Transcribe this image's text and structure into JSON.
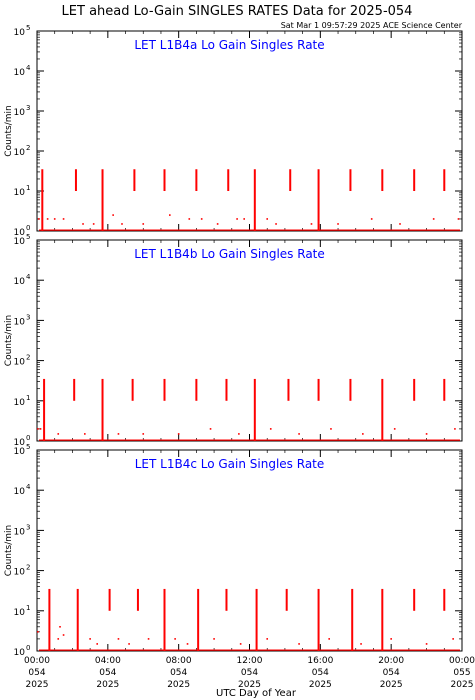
{
  "header": {
    "title": "LET ahead Lo-Gain SINGLES RATES Data for 2025-054",
    "timestamp": "Sat Mar  1 09:57:29 2025 ACE Science Center"
  },
  "colors": {
    "data": "#ff0000",
    "panel_title": "#0000ff",
    "axis": "#000000"
  },
  "chart_data": [
    {
      "type": "scatter",
      "title": "LET L1B4a Lo Gain Singles Rate",
      "ylabel": "Counts/min",
      "xlabel": "UTC Day of Year",
      "yscale": "log",
      "ylim": [
        1,
        100000
      ],
      "xlim": [
        0,
        24
      ],
      "yticks": [
        "10^0",
        "10^1",
        "10^2",
        "10^3",
        "10^4",
        "10^5"
      ],
      "spikes": [
        {
          "x": 0.3,
          "ymin": 1,
          "ymax": 35
        },
        {
          "x": 2.2,
          "ymin": 10,
          "ymax": 35
        },
        {
          "x": 3.7,
          "ymin": 1,
          "ymax": 35
        },
        {
          "x": 5.5,
          "ymin": 10,
          "ymax": 35
        },
        {
          "x": 7.2,
          "ymin": 10,
          "ymax": 35
        },
        {
          "x": 9.0,
          "ymin": 10,
          "ymax": 35
        },
        {
          "x": 10.8,
          "ymin": 10,
          "ymax": 35
        },
        {
          "x": 12.3,
          "ymin": 1,
          "ymax": 35
        },
        {
          "x": 14.3,
          "ymin": 10,
          "ymax": 35
        },
        {
          "x": 15.9,
          "ymin": 1,
          "ymax": 35
        },
        {
          "x": 17.7,
          "ymin": 10,
          "ymax": 35
        },
        {
          "x": 19.5,
          "ymin": 10,
          "ymax": 35
        },
        {
          "x": 21.3,
          "ymin": 10,
          "ymax": 35
        },
        {
          "x": 23.0,
          "ymin": 10,
          "ymax": 35
        }
      ],
      "points": [
        {
          "x": 0.1,
          "y": 2
        },
        {
          "x": 0.6,
          "y": 2
        },
        {
          "x": 1.0,
          "y": 2
        },
        {
          "x": 1.5,
          "y": 2
        },
        {
          "x": 2.6,
          "y": 1.5
        },
        {
          "x": 3.2,
          "y": 1.5
        },
        {
          "x": 4.3,
          "y": 2.5
        },
        {
          "x": 4.8,
          "y": 1.5
        },
        {
          "x": 6.0,
          "y": 1.5
        },
        {
          "x": 7.5,
          "y": 2.5
        },
        {
          "x": 8.6,
          "y": 2
        },
        {
          "x": 9.3,
          "y": 2
        },
        {
          "x": 10.2,
          "y": 1.5
        },
        {
          "x": 11.3,
          "y": 2
        },
        {
          "x": 11.7,
          "y": 2
        },
        {
          "x": 13.0,
          "y": 2
        },
        {
          "x": 13.5,
          "y": 1.5
        },
        {
          "x": 15.5,
          "y": 1.5
        },
        {
          "x": 17.0,
          "y": 1.5
        },
        {
          "x": 18.9,
          "y": 2
        },
        {
          "x": 20.5,
          "y": 1.5
        },
        {
          "x": 22.4,
          "y": 2
        },
        {
          "x": 23.8,
          "y": 2
        }
      ]
    },
    {
      "type": "scatter",
      "title": "LET L1B4b Lo Gain Singles Rate",
      "ylabel": "Counts/min",
      "yscale": "log",
      "ylim": [
        1,
        100000
      ],
      "xlim": [
        0,
        24
      ],
      "yticks": [
        "10^0",
        "10^1",
        "10^2",
        "10^3",
        "10^4",
        "10^5"
      ],
      "spikes": [
        {
          "x": 0.4,
          "ymin": 1,
          "ymax": 35
        },
        {
          "x": 2.1,
          "ymin": 10,
          "ymax": 35
        },
        {
          "x": 3.7,
          "ymin": 1,
          "ymax": 35
        },
        {
          "x": 5.4,
          "ymin": 10,
          "ymax": 35
        },
        {
          "x": 7.2,
          "ymin": 10,
          "ymax": 35
        },
        {
          "x": 9.0,
          "ymin": 10,
          "ymax": 35
        },
        {
          "x": 10.7,
          "ymin": 10,
          "ymax": 35
        },
        {
          "x": 12.3,
          "ymin": 1,
          "ymax": 35
        },
        {
          "x": 14.2,
          "ymin": 10,
          "ymax": 35
        },
        {
          "x": 15.9,
          "ymin": 10,
          "ymax": 35
        },
        {
          "x": 17.7,
          "ymin": 10,
          "ymax": 35
        },
        {
          "x": 19.5,
          "ymin": 1,
          "ymax": 35
        },
        {
          "x": 21.3,
          "ymin": 10,
          "ymax": 35
        },
        {
          "x": 23.0,
          "ymin": 10,
          "ymax": 35
        }
      ],
      "points": [
        {
          "x": 0.05,
          "y": 2
        },
        {
          "x": 0.2,
          "y": 2
        },
        {
          "x": 1.2,
          "y": 1.5
        },
        {
          "x": 2.7,
          "y": 1.5
        },
        {
          "x": 4.6,
          "y": 1.5
        },
        {
          "x": 6.0,
          "y": 1.5
        },
        {
          "x": 8.0,
          "y": 1.5
        },
        {
          "x": 9.8,
          "y": 2
        },
        {
          "x": 11.4,
          "y": 1.5
        },
        {
          "x": 13.2,
          "y": 2
        },
        {
          "x": 14.8,
          "y": 1.5
        },
        {
          "x": 16.6,
          "y": 2
        },
        {
          "x": 18.4,
          "y": 1.5
        },
        {
          "x": 20.2,
          "y": 2
        },
        {
          "x": 22.0,
          "y": 1.5
        },
        {
          "x": 23.6,
          "y": 2
        }
      ]
    },
    {
      "type": "scatter",
      "title": "LET L1B4c Lo Gain Singles Rate",
      "ylabel": "Counts/min",
      "yscale": "log",
      "ylim": [
        1,
        100000
      ],
      "xlim": [
        0,
        24
      ],
      "yticks": [
        "10^0",
        "10^1",
        "10^2",
        "10^3",
        "10^4",
        "10^5"
      ],
      "spikes": [
        {
          "x": 0.7,
          "ymin": 1,
          "ymax": 35
        },
        {
          "x": 2.3,
          "ymin": 1,
          "ymax": 35
        },
        {
          "x": 4.1,
          "ymin": 10,
          "ymax": 35
        },
        {
          "x": 5.7,
          "ymin": 10,
          "ymax": 35
        },
        {
          "x": 7.2,
          "ymin": 1,
          "ymax": 35
        },
        {
          "x": 9.1,
          "ymin": 1,
          "ymax": 35
        },
        {
          "x": 10.7,
          "ymin": 10,
          "ymax": 35
        },
        {
          "x": 12.4,
          "ymin": 1,
          "ymax": 35
        },
        {
          "x": 14.1,
          "ymin": 10,
          "ymax": 35
        },
        {
          "x": 15.9,
          "ymin": 1,
          "ymax": 35
        },
        {
          "x": 17.8,
          "ymin": 1,
          "ymax": 35
        },
        {
          "x": 19.5,
          "ymin": 1,
          "ymax": 35
        },
        {
          "x": 21.3,
          "ymin": 10,
          "ymax": 35
        },
        {
          "x": 23.0,
          "ymin": 10,
          "ymax": 35
        }
      ],
      "points": [
        {
          "x": 0.05,
          "y": 3
        },
        {
          "x": 1.2,
          "y": 2
        },
        {
          "x": 1.3,
          "y": 4
        },
        {
          "x": 1.5,
          "y": 2.5
        },
        {
          "x": 3.0,
          "y": 2
        },
        {
          "x": 3.4,
          "y": 1.5
        },
        {
          "x": 4.6,
          "y": 2
        },
        {
          "x": 5.2,
          "y": 1.5
        },
        {
          "x": 6.3,
          "y": 2
        },
        {
          "x": 7.8,
          "y": 2
        },
        {
          "x": 8.5,
          "y": 1.5
        },
        {
          "x": 10.0,
          "y": 2
        },
        {
          "x": 11.5,
          "y": 1.5
        },
        {
          "x": 13.0,
          "y": 2
        },
        {
          "x": 14.8,
          "y": 1.5
        },
        {
          "x": 16.5,
          "y": 2
        },
        {
          "x": 18.3,
          "y": 1.5
        },
        {
          "x": 20.0,
          "y": 2
        },
        {
          "x": 22.0,
          "y": 1.5
        },
        {
          "x": 23.5,
          "y": 2
        }
      ]
    }
  ],
  "xaxis": {
    "label": "UTC Day of Year",
    "ticks": [
      {
        "t": 0,
        "time": "00:00",
        "doy": "054",
        "year": "2025"
      },
      {
        "t": 4,
        "time": "04:00",
        "doy": "054",
        "year": "2025"
      },
      {
        "t": 8,
        "time": "08:00",
        "doy": "054",
        "year": "2025"
      },
      {
        "t": 12,
        "time": "12:00",
        "doy": "054",
        "year": "2025"
      },
      {
        "t": 16,
        "time": "16:00",
        "doy": "054",
        "year": "2025"
      },
      {
        "t": 20,
        "time": "20:00",
        "doy": "054",
        "year": "2025"
      },
      {
        "t": 24,
        "time": "00:00",
        "doy": "055",
        "year": "2025"
      }
    ]
  }
}
